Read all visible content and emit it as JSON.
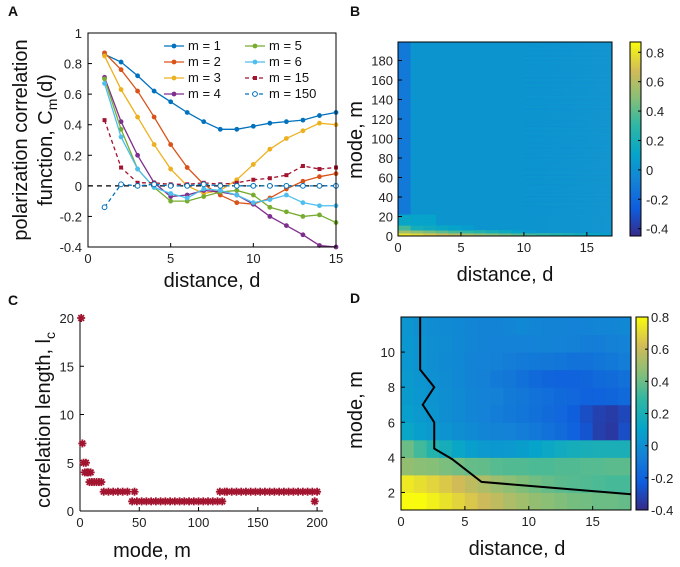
{
  "chart_data": [
    {
      "panel": "A",
      "type": "line",
      "xlabel": "distance, d",
      "ylabel_line1": "polarization correlation",
      "ylabel_line2": "function, C",
      "ylabel_sub": "m",
      "ylabel_tail": "(d)",
      "xlim": [
        0,
        15
      ],
      "ylim": [
        -0.4,
        1
      ],
      "xticks": [
        "0",
        "5",
        "10",
        "15"
      ],
      "yticks": [
        "-0.4",
        "-0.2",
        "0",
        "0.2",
        "0.4",
        "0.6",
        "0.8",
        "1"
      ],
      "x": [
        1,
        2,
        3,
        4,
        5,
        6,
        7,
        8,
        9,
        10,
        11,
        12,
        13,
        14,
        15
      ],
      "series": [
        {
          "name": "m = 1",
          "m": "1",
          "color": "#0072bd",
          "marker": "circle",
          "dash": false,
          "values": [
            0.86,
            0.81,
            0.72,
            0.62,
            0.55,
            0.48,
            0.42,
            0.37,
            0.37,
            0.39,
            0.41,
            0.42,
            0.43,
            0.46,
            0.48
          ]
        },
        {
          "name": "m = 2",
          "m": "2",
          "color": "#d95319",
          "marker": "circle",
          "dash": false,
          "values": [
            0.87,
            0.76,
            0.62,
            0.45,
            0.27,
            0.12,
            0.01,
            -0.06,
            -0.11,
            -0.12,
            -0.08,
            -0.02,
            0.03,
            0.06,
            0.08
          ]
        },
        {
          "name": "m = 3",
          "m": "3",
          "color": "#edb120",
          "marker": "circle",
          "dash": false,
          "values": [
            0.85,
            0.63,
            0.45,
            0.27,
            0.11,
            0.0,
            -0.05,
            -0.03,
            0.04,
            0.14,
            0.24,
            0.31,
            0.36,
            0.41,
            0.4
          ]
        },
        {
          "name": "m = 4",
          "m": "4",
          "color": "#7e2f8e",
          "marker": "circle",
          "dash": false,
          "values": [
            0.71,
            0.42,
            0.2,
            0.02,
            -0.07,
            -0.06,
            -0.03,
            -0.04,
            -0.06,
            -0.12,
            -0.2,
            -0.26,
            -0.32,
            -0.39,
            -0.4
          ]
        },
        {
          "name": "m = 5",
          "m": "5",
          "color": "#77ac30",
          "marker": "circle",
          "dash": false,
          "values": [
            0.7,
            0.37,
            0.11,
            -0.01,
            -0.1,
            -0.1,
            -0.07,
            -0.04,
            -0.03,
            -0.06,
            -0.14,
            -0.17,
            -0.2,
            -0.19,
            -0.24
          ]
        },
        {
          "name": "m = 6",
          "m": "6",
          "color": "#4dbeee",
          "marker": "circle",
          "dash": false,
          "values": [
            0.67,
            0.32,
            0.11,
            -0.01,
            -0.05,
            -0.08,
            -0.02,
            -0.03,
            -0.06,
            -0.11,
            -0.09,
            -0.06,
            -0.11,
            -0.13,
            -0.13
          ]
        },
        {
          "name": "m = 15",
          "m": "15",
          "color": "#a2142f",
          "marker": "square",
          "dash": true,
          "values": [
            0.43,
            0.12,
            0.02,
            0.02,
            0.01,
            0.01,
            0.02,
            0.01,
            0.02,
            0.04,
            0.05,
            0.07,
            0.13,
            0.11,
            0.12
          ]
        },
        {
          "name": "m = 150",
          "m": "150",
          "color": "#0072bd",
          "marker": "open-circle",
          "dash": true,
          "values": [
            -0.14,
            0.01,
            0.0,
            0.01,
            0.0,
            0.0,
            0.01,
            0.0,
            0.0,
            0.0,
            0.0,
            0.0,
            0.0,
            0.0,
            0.0
          ]
        }
      ],
      "reference_line": 0
    },
    {
      "panel": "B",
      "type": "heatmap",
      "xlabel": "distance, d",
      "ylabel": "mode, m",
      "xlim": [
        0,
        17
      ],
      "ylim": [
        0,
        199
      ],
      "xticks": [
        "0",
        "5",
        "10",
        "15"
      ],
      "yticks": [
        "0",
        "20",
        "40",
        "60",
        "80",
        "100",
        "120",
        "140",
        "160",
        "180"
      ],
      "colorbar_range": [
        -0.45,
        0.87
      ],
      "colorbar_ticks": [
        "0.8",
        "0.6",
        "0.4",
        "0.2",
        "0",
        "-0.2",
        "-0.4"
      ]
    },
    {
      "panel": "C",
      "type": "scatter",
      "xlabel": "mode, m",
      "ylabel": "correlation length, l",
      "ylabel_sub": "c",
      "xlim": [
        0,
        205
      ],
      "ylim": [
        0,
        20
      ],
      "xticks": [
        "0",
        "50",
        "100",
        "150",
        "200"
      ],
      "yticks": [
        "0",
        "5",
        "10",
        "15",
        "20"
      ],
      "color": "#a2142f",
      "points": [
        [
          1,
          20
        ],
        [
          2,
          7
        ],
        [
          3,
          5
        ],
        [
          4,
          4
        ],
        [
          5,
          5
        ],
        [
          6,
          4
        ],
        [
          7,
          4
        ],
        [
          8,
          3
        ],
        [
          9,
          4
        ],
        [
          10,
          3
        ],
        [
          12,
          3
        ],
        [
          14,
          3
        ],
        [
          16,
          3
        ],
        [
          18,
          3
        ],
        [
          20,
          2
        ],
        [
          24,
          2
        ],
        [
          28,
          2
        ],
        [
          32,
          2
        ],
        [
          36,
          2
        ],
        [
          40,
          2
        ],
        [
          44,
          1
        ],
        [
          46,
          2
        ],
        [
          48,
          1
        ],
        [
          52,
          1
        ],
        [
          56,
          1
        ],
        [
          60,
          1
        ],
        [
          64,
          1
        ],
        [
          68,
          1
        ],
        [
          72,
          1
        ],
        [
          76,
          1
        ],
        [
          80,
          1
        ],
        [
          84,
          1
        ],
        [
          88,
          1
        ],
        [
          92,
          1
        ],
        [
          96,
          1
        ],
        [
          100,
          1
        ],
        [
          104,
          1
        ],
        [
          108,
          1
        ],
        [
          112,
          1
        ],
        [
          116,
          1
        ],
        [
          118,
          2
        ],
        [
          120,
          1
        ],
        [
          122,
          2
        ],
        [
          124,
          2
        ],
        [
          128,
          2
        ],
        [
          132,
          2
        ],
        [
          136,
          2
        ],
        [
          140,
          2
        ],
        [
          144,
          2
        ],
        [
          148,
          2
        ],
        [
          152,
          2
        ],
        [
          156,
          2
        ],
        [
          160,
          2
        ],
        [
          164,
          2
        ],
        [
          168,
          2
        ],
        [
          172,
          2
        ],
        [
          176,
          2
        ],
        [
          180,
          2
        ],
        [
          184,
          2
        ],
        [
          188,
          2
        ],
        [
          192,
          2
        ],
        [
          196,
          2
        ],
        [
          198,
          1
        ],
        [
          200,
          2
        ]
      ]
    },
    {
      "panel": "D",
      "type": "heatmap",
      "xlabel": "distance, d",
      "ylabel": "mode, m",
      "xlim": [
        0,
        18
      ],
      "ylim": [
        1,
        12
      ],
      "xticks": [
        "0",
        "5",
        "10",
        "15"
      ],
      "yticks": [
        "2",
        "4",
        "6",
        "8",
        "10"
      ],
      "colorbar_range": [
        -0.4,
        0.8
      ],
      "colorbar_ticks": [
        "0.8",
        "0.6",
        "0.4",
        "0.2",
        "0",
        "-0.2",
        "-0.4"
      ],
      "contour": [
        [
          1.5,
          12
        ],
        [
          1.5,
          9
        ],
        [
          2.6,
          8
        ],
        [
          1.7,
          7
        ],
        [
          2.6,
          6
        ],
        [
          2.6,
          4.5
        ],
        [
          4.0,
          3.9
        ],
        [
          6.3,
          2.6
        ],
        [
          18,
          1.9
        ]
      ],
      "matrix": [
        [
          0.82,
          0.8,
          0.77,
          0.73,
          0.69,
          0.65,
          0.61,
          0.58,
          0.54,
          0.51,
          0.48,
          0.46,
          0.44,
          0.42,
          0.41,
          0.4,
          0.4,
          0.39
        ],
        [
          0.75,
          0.72,
          0.69,
          0.66,
          0.62,
          0.58,
          0.54,
          0.5,
          0.47,
          0.44,
          0.41,
          0.39,
          0.37,
          0.36,
          0.35,
          0.34,
          0.33,
          0.33
        ],
        [
          0.48,
          0.46,
          0.45,
          0.43,
          0.41,
          0.39,
          0.38,
          0.36,
          0.35,
          0.35,
          0.34,
          0.34,
          0.35,
          0.35,
          0.36,
          0.36,
          0.37,
          0.37
        ],
        [
          0.4,
          0.32,
          0.24,
          0.18,
          0.12,
          0.08,
          0.05,
          0.04,
          0.05,
          0.07,
          0.1,
          0.13,
          0.16,
          0.18,
          0.19,
          0.2,
          0.2,
          0.2
        ],
        [
          0.12,
          0.08,
          0.05,
          0.02,
          0.0,
          -0.02,
          -0.04,
          -0.05,
          -0.06,
          -0.08,
          -0.1,
          -0.13,
          -0.16,
          -0.2,
          -0.26,
          -0.33,
          -0.35,
          -0.28
        ],
        [
          0.08,
          0.05,
          0.03,
          0.0,
          -0.02,
          -0.04,
          -0.06,
          -0.08,
          -0.1,
          -0.12,
          -0.14,
          -0.16,
          -0.18,
          -0.22,
          -0.28,
          -0.32,
          -0.34,
          -0.3
        ],
        [
          0.06,
          0.04,
          0.02,
          0.0,
          -0.02,
          -0.04,
          -0.06,
          -0.07,
          -0.09,
          -0.11,
          -0.13,
          -0.15,
          -0.17,
          -0.18,
          -0.2,
          -0.2,
          -0.19,
          -0.17
        ],
        [
          0.05,
          0.03,
          0.01,
          -0.01,
          -0.03,
          -0.05,
          -0.07,
          -0.09,
          -0.11,
          -0.14,
          -0.17,
          -0.19,
          -0.2,
          -0.2,
          -0.19,
          -0.17,
          -0.16,
          -0.14
        ],
        [
          0.04,
          0.02,
          0.0,
          -0.02,
          -0.03,
          -0.05,
          -0.06,
          -0.07,
          -0.08,
          -0.09,
          -0.1,
          -0.11,
          -0.12,
          -0.13,
          -0.13,
          -0.12,
          -0.1,
          -0.08
        ],
        [
          0.04,
          0.02,
          0.0,
          -0.01,
          -0.03,
          -0.04,
          -0.05,
          -0.06,
          -0.06,
          -0.06,
          -0.06,
          -0.05,
          -0.06,
          -0.07,
          -0.08,
          -0.08,
          -0.07,
          -0.06
        ],
        [
          0.03,
          0.01,
          -0.01,
          -0.02,
          -0.03,
          -0.04,
          -0.05,
          -0.05,
          -0.04,
          -0.03,
          -0.04,
          -0.05,
          -0.05,
          -0.06,
          -0.05,
          -0.04,
          -0.04,
          -0.03
        ]
      ]
    }
  ]
}
